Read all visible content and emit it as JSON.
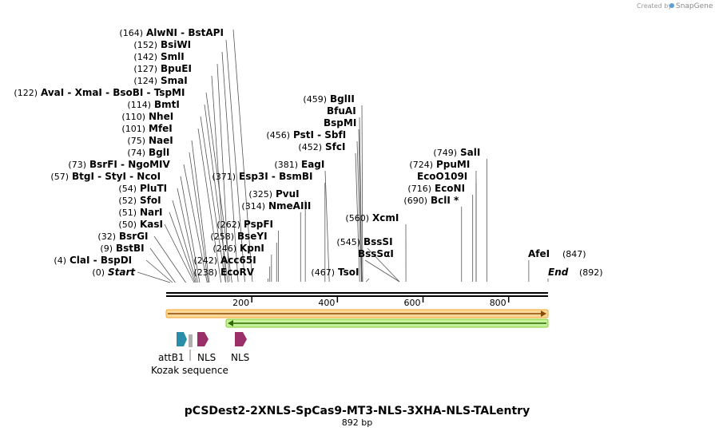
{
  "credit": {
    "prefix": "Created by",
    "brand": "SnapGene"
  },
  "map": {
    "length": 892,
    "title": "pCSDest2-2XNLS-SpCas9-MT3-NLS-3XHA-NLS-TALentry",
    "subtitle": "892 bp",
    "ticks": [
      {
        "value": 200,
        "label": "200"
      },
      {
        "value": 400,
        "label": "400"
      },
      {
        "value": 600,
        "label": "600"
      },
      {
        "value": 800,
        "label": "800"
      }
    ],
    "left_sites": [
      {
        "pos": "(164)",
        "names": [
          "AlwNI",
          "BstAPI"
        ],
        "cut": 164
      },
      {
        "pos": "(152)",
        "names": [
          "BsiWI"
        ],
        "cut": 152
      },
      {
        "pos": "(142)",
        "names": [
          "SmlI"
        ],
        "cut": 142
      },
      {
        "pos": "(127)",
        "names": [
          "BpuEI"
        ],
        "cut": 127
      },
      {
        "pos": "(124)",
        "names": [
          "SmaI"
        ],
        "cut": 124
      },
      {
        "pos": "(122)",
        "names": [
          "AvaI",
          "XmaI",
          "BsoBI",
          "TspMI"
        ],
        "cut": 122
      },
      {
        "pos": "(114)",
        "names": [
          "BmtI"
        ],
        "cut": 114
      },
      {
        "pos": "(110)",
        "names": [
          "NheI"
        ],
        "cut": 110
      },
      {
        "pos": "(101)",
        "names": [
          "MfeI"
        ],
        "cut": 101
      },
      {
        "pos": "(75)",
        "names": [
          "NaeI"
        ],
        "cut": 75
      },
      {
        "pos": "(74)",
        "names": [
          "BglI"
        ],
        "cut": 74
      },
      {
        "pos": "(73)",
        "names": [
          "BsrFI",
          "NgoMIV"
        ],
        "cut": 73
      },
      {
        "pos": "(57)",
        "names": [
          "BtgI",
          "StyI",
          "NcoI"
        ],
        "cut": 57
      },
      {
        "pos": "(54)",
        "names": [
          "PluTI"
        ],
        "cut": 54
      },
      {
        "pos": "(52)",
        "names": [
          "SfoI"
        ],
        "cut": 52
      },
      {
        "pos": "(51)",
        "names": [
          "NarI"
        ],
        "cut": 51
      },
      {
        "pos": "(50)",
        "names": [
          "KasI"
        ],
        "cut": 50
      },
      {
        "pos": "(32)",
        "names": [
          "BsrGI"
        ],
        "cut": 32
      },
      {
        "pos": "(9)",
        "names": [
          "BstBI"
        ],
        "cut": 9
      },
      {
        "pos": "(4)",
        "names": [
          "ClaI",
          "BspDI"
        ],
        "cut": 4
      },
      {
        "pos": "(0)",
        "names": [
          "Start"
        ],
        "cut": 0,
        "italic": true
      }
    ],
    "mid_sites": [
      {
        "pos": "(371)",
        "names": [
          "Esp3I",
          "BsmBI"
        ],
        "cut": 371
      },
      {
        "pos": "(325)",
        "names": [
          "PvuI"
        ],
        "cut": 325
      },
      {
        "pos": "(314)",
        "names": [
          "NmeAIII"
        ],
        "cut": 314
      },
      {
        "pos": "(262)",
        "names": [
          "PspFI"
        ],
        "cut": 262
      },
      {
        "pos": "(258)",
        "names": [
          "BseYI"
        ],
        "cut": 258
      },
      {
        "pos": "(246)",
        "names": [
          "KpnI"
        ],
        "cut": 246
      },
      {
        "pos": "(242)",
        "names": [
          "Acc65I"
        ],
        "cut": 242
      },
      {
        "pos": "(238)",
        "names": [
          "EcoRV"
        ],
        "cut": 238
      }
    ],
    "center_sites": [
      {
        "pos": "(459)",
        "names": [
          "BglII"
        ],
        "cut": 459
      },
      {
        "pos": "",
        "names": [
          "BfuAI"
        ],
        "cut": 457
      },
      {
        "pos": "",
        "names": [
          "BspMI"
        ],
        "cut": 457
      },
      {
        "pos": "(456)",
        "names": [
          "PstI",
          "SbfI"
        ],
        "cut": 456
      },
      {
        "pos": "(452)",
        "names": [
          "SfcI"
        ],
        "cut": 452
      },
      {
        "pos": "(381)",
        "names": [
          "EagI"
        ],
        "cut": 381
      },
      {
        "pos": "(560)",
        "names": [
          "XcmI"
        ],
        "cut": 560
      },
      {
        "pos": "(545)",
        "names": [
          "BssSI"
        ],
        "cut": 545
      },
      {
        "pos": "",
        "names": [
          "BssSαI"
        ],
        "cut": 545
      },
      {
        "pos": "(467)",
        "names": [
          "TsoI"
        ],
        "cut": 467
      }
    ],
    "right_sites": [
      {
        "pos": "(749)",
        "names": [
          "SalI"
        ],
        "cut": 749
      },
      {
        "pos": "(724)",
        "names": [
          "PpuMI"
        ],
        "cut": 724
      },
      {
        "pos": "",
        "names": [
          "EcoO109I"
        ],
        "cut": 724
      },
      {
        "pos": "(716)",
        "names": [
          "EcoNI"
        ],
        "cut": 716
      },
      {
        "pos": "(690)",
        "names": [
          "BclI *"
        ],
        "cut": 690
      }
    ],
    "end_sites": [
      {
        "pos": "(847)",
        "names": [
          "AfeI"
        ],
        "cut": 847
      },
      {
        "pos": "(892)",
        "names": [
          "End"
        ],
        "cut": 892,
        "italic": true
      }
    ],
    "features": [
      {
        "label": "attB1"
      },
      {
        "label": "NLS"
      },
      {
        "label": "NLS"
      },
      {
        "label": "Kozak sequence"
      }
    ],
    "colors": {
      "orange_bar": "#f5a623",
      "green_bar": "#7ed321",
      "attb1": "#2a8ea8",
      "nls": "#9b2f6a",
      "kozak": "#b0b0b0"
    }
  }
}
